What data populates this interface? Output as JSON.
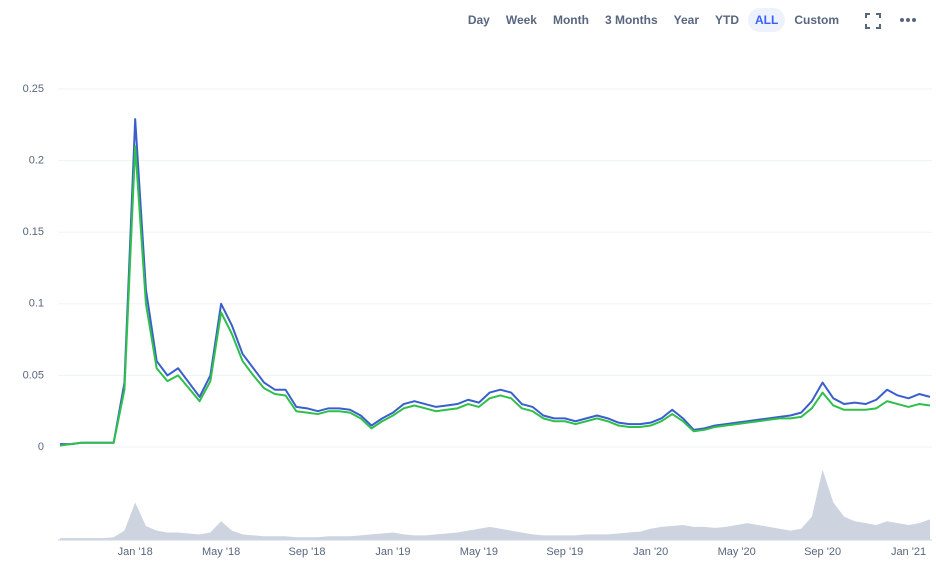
{
  "toolbar": {
    "buttons": [
      "Day",
      "Week",
      "Month",
      "3 Months",
      "Year",
      "YTD",
      "ALL",
      "Custom"
    ],
    "active": "ALL"
  },
  "chart_data": {
    "type": "line",
    "categories": [
      null,
      null,
      null,
      null,
      null,
      null,
      null,
      "Jan '18",
      null,
      null,
      null,
      null,
      null,
      null,
      null,
      "May '18",
      null,
      null,
      null,
      null,
      null,
      null,
      null,
      "Sep '18",
      null,
      null,
      null,
      null,
      null,
      null,
      null,
      "Jan '19",
      null,
      null,
      null,
      null,
      null,
      null,
      null,
      "May '19",
      null,
      null,
      null,
      null,
      null,
      null,
      null,
      "Sep '19",
      null,
      null,
      null,
      null,
      null,
      null,
      null,
      "Jan '20",
      null,
      null,
      null,
      null,
      null,
      null,
      null,
      "May '20",
      null,
      null,
      null,
      null,
      null,
      null,
      null,
      "Sep '20",
      null,
      null,
      null,
      null,
      null,
      null,
      null,
      "Jan '21",
      null,
      null
    ],
    "series": [
      {
        "color": "#3a5fcd",
        "values": [
          0.002,
          0.002,
          0.003,
          0.003,
          0.003,
          0.003,
          0.045,
          0.229,
          0.11,
          0.06,
          0.05,
          0.055,
          0.045,
          0.035,
          0.05,
          0.1,
          0.085,
          0.065,
          0.055,
          0.045,
          0.04,
          0.04,
          0.028,
          0.027,
          0.025,
          0.027,
          0.027,
          0.026,
          0.022,
          0.015,
          0.02,
          0.024,
          0.03,
          0.032,
          0.03,
          0.028,
          0.029,
          0.03,
          0.033,
          0.031,
          0.038,
          0.04,
          0.038,
          0.03,
          0.028,
          0.022,
          0.02,
          0.02,
          0.018,
          0.02,
          0.022,
          0.02,
          0.017,
          0.016,
          0.016,
          0.017,
          0.02,
          0.026,
          0.02,
          0.012,
          0.013,
          0.015,
          0.016,
          0.017,
          0.018,
          0.019,
          0.02,
          0.021,
          0.022,
          0.024,
          0.032,
          0.045,
          0.034,
          0.03,
          0.031,
          0.03,
          0.033,
          0.04,
          0.036,
          0.034,
          0.037,
          0.035
        ]
      },
      {
        "color": "#2fbf4a",
        "values": [
          0.001,
          0.002,
          0.003,
          0.003,
          0.003,
          0.003,
          0.04,
          0.21,
          0.1,
          0.055,
          0.046,
          0.05,
          0.041,
          0.032,
          0.046,
          0.094,
          0.079,
          0.06,
          0.05,
          0.041,
          0.037,
          0.036,
          0.025,
          0.024,
          0.023,
          0.025,
          0.025,
          0.024,
          0.02,
          0.013,
          0.018,
          0.022,
          0.027,
          0.029,
          0.027,
          0.025,
          0.026,
          0.027,
          0.03,
          0.028,
          0.034,
          0.036,
          0.034,
          0.027,
          0.025,
          0.02,
          0.018,
          0.018,
          0.016,
          0.018,
          0.02,
          0.018,
          0.015,
          0.014,
          0.014,
          0.015,
          0.018,
          0.023,
          0.018,
          0.011,
          0.012,
          0.014,
          0.015,
          0.016,
          0.017,
          0.018,
          0.019,
          0.02,
          0.02,
          0.021,
          0.027,
          0.038,
          0.029,
          0.026,
          0.026,
          0.026,
          0.027,
          0.032,
          0.03,
          0.028,
          0.03,
          0.029
        ]
      }
    ],
    "ylim": [
      0,
      0.25
    ],
    "yticks": [
      0,
      0.05,
      0.1,
      0.15,
      0.2,
      0.25
    ],
    "grid": true,
    "volume": {
      "color": "#cdd4e0",
      "ylim": [
        0,
        80
      ],
      "values": [
        2,
        2,
        2,
        2,
        2,
        3,
        10,
        40,
        15,
        10,
        8,
        8,
        7,
        6,
        8,
        20,
        10,
        6,
        5,
        4,
        4,
        4,
        3,
        3,
        3,
        4,
        4,
        4,
        5,
        6,
        7,
        8,
        6,
        5,
        5,
        6,
        7,
        8,
        10,
        12,
        14,
        12,
        10,
        8,
        6,
        5,
        5,
        5,
        5,
        6,
        6,
        6,
        7,
        8,
        9,
        12,
        14,
        15,
        16,
        14,
        14,
        13,
        14,
        16,
        18,
        16,
        14,
        12,
        10,
        12,
        25,
        75,
        40,
        25,
        20,
        18,
        16,
        20,
        18,
        16,
        18,
        22
      ]
    }
  }
}
